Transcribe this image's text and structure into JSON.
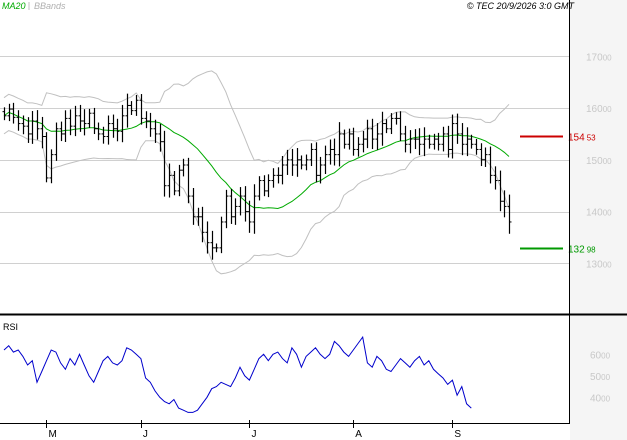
{
  "header": {
    "legend_ma": "MA20",
    "legend_bb": "BBands",
    "copyright": "© TEC 20/9/2026 3:0 GMT"
  },
  "colors": {
    "bar": "#000000",
    "ma": "#00aa00",
    "bb": "#c0c0c0",
    "rsi": "#0000cc",
    "upper_level": "#cc0000",
    "lower_level": "#009900",
    "grid": "#d0d0d0",
    "axis_text": "#c8c8c8"
  },
  "chart_data": [
    {
      "type": "ohlc",
      "title": "",
      "series": [
        {
          "name": "MA20"
        },
        {
          "name": "BBands"
        }
      ],
      "ylim": [
        12100,
        17700
      ],
      "y_ticks": [
        13000,
        14000,
        15000,
        16000,
        17000
      ],
      "y_tick_labels": [
        "13000",
        "14000",
        "15000",
        "16000",
        "17000"
      ],
      "x_tick_labels": [
        "M",
        "J",
        "J",
        "A",
        "S"
      ],
      "x_tick_bars": [
        9,
        29,
        52,
        74,
        95
      ],
      "grid": true,
      "levels": [
        {
          "label_int": "154",
          "label_dec": "53",
          "value": 15453,
          "kind": "upper"
        },
        {
          "label_int": "132",
          "label_dec": "98",
          "value": 13298,
          "kind": "lower"
        }
      ],
      "close": [
        15850,
        15980,
        15820,
        15700,
        15650,
        15500,
        15750,
        15600,
        15450,
        14650,
        15100,
        15600,
        15500,
        15800,
        15650,
        15850,
        15750,
        15700,
        15900,
        15600,
        15500,
        15450,
        15700,
        15600,
        15550,
        15850,
        16050,
        15950,
        16150,
        15800,
        15750,
        15600,
        15500,
        15350,
        14500,
        14700,
        14400,
        14800,
        14900,
        14300,
        13900,
        13900,
        13600,
        13400,
        13300,
        13300,
        13800,
        14300,
        13900,
        14100,
        14300,
        14000,
        13800,
        14300,
        14600,
        14400,
        14600,
        14700,
        14700,
        14900,
        15000,
        14900,
        15000,
        14900,
        15000,
        15200,
        14700,
        14900,
        15100,
        15200,
        15100,
        15500,
        15300,
        15500,
        15200,
        15300,
        15400,
        15600,
        15400,
        15500,
        15700,
        15600,
        15800,
        15800,
        15500,
        15300,
        15400,
        15400,
        15300,
        15400,
        15300,
        15400,
        15300,
        15500,
        15200,
        15700,
        15500,
        15300,
        15400,
        15300,
        15200,
        15000,
        15100,
        14700,
        14600,
        14200,
        14100,
        13800
      ]
    },
    {
      "type": "line",
      "title": "RSI",
      "ylim": [
        29,
        75
      ],
      "y_ticks": [
        40,
        50,
        60
      ],
      "y_tick_labels": [
        "4000",
        "5000",
        "6000"
      ],
      "values": [
        62,
        64,
        61,
        62,
        59,
        55,
        57,
        47,
        52,
        57,
        62,
        61,
        56,
        53,
        58,
        55,
        60,
        55,
        50,
        47,
        52,
        57,
        59,
        56,
        55,
        57,
        63,
        62,
        60,
        58,
        49,
        47,
        43,
        40,
        38,
        37,
        39,
        35,
        34,
        33,
        33,
        34,
        37,
        40,
        44,
        45,
        47,
        46,
        45,
        49,
        54,
        50,
        48,
        53,
        58,
        60,
        57,
        60,
        61,
        58,
        56,
        63,
        60,
        54,
        59,
        61,
        63,
        60,
        58,
        60,
        66,
        64,
        61,
        59,
        62,
        65,
        68,
        56,
        54,
        59,
        57,
        53,
        52,
        55,
        58,
        56,
        54,
        57,
        59,
        55,
        57,
        53,
        51,
        49,
        46,
        48,
        41,
        45,
        37,
        35
      ]
    }
  ]
}
